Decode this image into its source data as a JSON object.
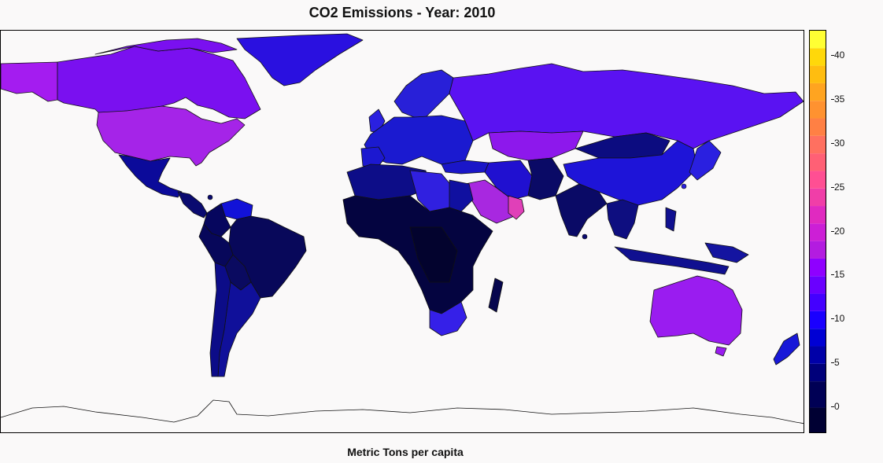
{
  "title": "CO2 Emissions - Year: 2010",
  "xlabel": "Metric Tons per capita",
  "colorbar": {
    "range": [
      -3,
      43
    ],
    "ticks": [
      0,
      5,
      10,
      15,
      20,
      25,
      30,
      35,
      40
    ],
    "bands": [
      {
        "from": -3,
        "to": 0,
        "color": "#000033"
      },
      {
        "from": 0,
        "to": 3,
        "color": "#000055"
      },
      {
        "from": 3,
        "to": 5,
        "color": "#00007a"
      },
      {
        "from": 5,
        "to": 7,
        "color": "#0000a8"
      },
      {
        "from": 7,
        "to": 9,
        "color": "#0000d4"
      },
      {
        "from": 9,
        "to": 11,
        "color": "#1a00ff"
      },
      {
        "from": 11,
        "to": 13,
        "color": "#4400ff"
      },
      {
        "from": 13,
        "to": 15,
        "color": "#6a00ff"
      },
      {
        "from": 15,
        "to": 17,
        "color": "#8f00ff"
      },
      {
        "from": 17,
        "to": 19,
        "color": "#b31ce0"
      },
      {
        "from": 19,
        "to": 21,
        "color": "#cc1fd6"
      },
      {
        "from": 21,
        "to": 23,
        "color": "#e02ac0"
      },
      {
        "from": 23,
        "to": 25,
        "color": "#f03ea8"
      },
      {
        "from": 25,
        "to": 27,
        "color": "#ff4f93"
      },
      {
        "from": 27,
        "to": 29,
        "color": "#ff6075"
      },
      {
        "from": 29,
        "to": 31,
        "color": "#ff7060"
      },
      {
        "from": 31,
        "to": 33,
        "color": "#ff8044"
      },
      {
        "from": 33,
        "to": 35,
        "color": "#ff9230"
      },
      {
        "from": 35,
        "to": 37,
        "color": "#ffa420"
      },
      {
        "from": 37,
        "to": 39,
        "color": "#ffbd10"
      },
      {
        "from": 39,
        "to": 41,
        "color": "#ffd80a"
      },
      {
        "from": 41,
        "to": 43,
        "color": "#ffff33"
      }
    ]
  },
  "chart_data": {
    "type": "choropleth",
    "title": "CO2 Emissions - Year: 2010",
    "legend_title": "Metric Tons per capita",
    "colorbar_ticks": [
      0,
      5,
      10,
      15,
      20,
      25,
      30,
      35,
      40
    ],
    "regions": [
      {
        "name": "Canada",
        "value": 15,
        "color": "#7a10f0"
      },
      {
        "name": "Alaska",
        "value": 17,
        "color": "#a41cf0"
      },
      {
        "name": "United States",
        "value": 18,
        "color": "#a524e8"
      },
      {
        "name": "Greenland",
        "value": 10,
        "color": "#2a10e0"
      },
      {
        "name": "Mexico",
        "value": 4,
        "color": "#0b0a9a"
      },
      {
        "name": "Central America",
        "value": 2,
        "color": "#0a0a70"
      },
      {
        "name": "Venezuela",
        "value": 7,
        "color": "#1212d8"
      },
      {
        "name": "Colombia",
        "value": 2,
        "color": "#06065e"
      },
      {
        "name": "Brazil",
        "value": 2,
        "color": "#08085a"
      },
      {
        "name": "Peru",
        "value": 2,
        "color": "#07075a"
      },
      {
        "name": "Argentina",
        "value": 5,
        "color": "#10109a"
      },
      {
        "name": "Chile",
        "value": 4,
        "color": "#0c0c88"
      },
      {
        "name": "Europe",
        "value": 7,
        "color": "#1b1ad0"
      },
      {
        "name": "Scandinavia",
        "value": 8,
        "color": "#2820d8"
      },
      {
        "name": "Russia",
        "value": 12,
        "color": "#5a12f2"
      },
      {
        "name": "Kazakhstan",
        "value": 15,
        "color": "#8d18ec"
      },
      {
        "name": "Mongolia",
        "value": 5,
        "color": "#0c0c80"
      },
      {
        "name": "China",
        "value": 6,
        "color": "#1e14d8"
      },
      {
        "name": "Japan",
        "value": 9,
        "color": "#2a20e0"
      },
      {
        "name": "India",
        "value": 2,
        "color": "#0a0a66"
      },
      {
        "name": "Saudi Arabia",
        "value": 17,
        "color": "#a828e0"
      },
      {
        "name": "Gulf States",
        "value": 25,
        "color": "#e040b8"
      },
      {
        "name": "Iran",
        "value": 8,
        "color": "#2010d0"
      },
      {
        "name": "North Africa",
        "value": 3,
        "color": "#0d0d88"
      },
      {
        "name": "Libya",
        "value": 9,
        "color": "#3020e0"
      },
      {
        "name": "Sub-Saharan Africa",
        "value": 0,
        "color": "#040440"
      },
      {
        "name": "South Africa",
        "value": 9,
        "color": "#3520e8"
      },
      {
        "name": "Madagascar",
        "value": 0,
        "color": "#06064e"
      },
      {
        "name": "Southeast Asia",
        "value": 2,
        "color": "#0e0e80"
      },
      {
        "name": "Indonesia",
        "value": 2,
        "color": "#101090"
      },
      {
        "name": "Australia",
        "value": 17,
        "color": "#9a1cf0"
      },
      {
        "name": "New Zealand",
        "value": 8,
        "color": "#1818d8"
      }
    ]
  }
}
